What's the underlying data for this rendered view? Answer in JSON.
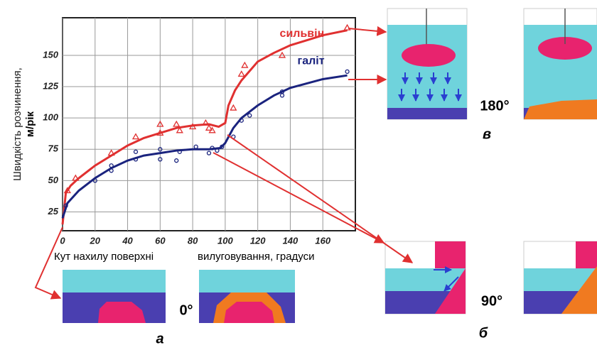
{
  "chart_data": {
    "type": "line",
    "ylabel": [
      "Швидкість розчинення,",
      "м/рік"
    ],
    "xlabel": [
      "Кут нахилу поверхні",
      "вилуговування, градуси"
    ],
    "xlim": [
      0,
      180
    ],
    "ylim": [
      10,
      180
    ],
    "xticks": [
      0,
      20,
      40,
      60,
      80,
      100,
      120,
      140,
      160
    ],
    "yticks": [
      25,
      50,
      75,
      100,
      125,
      150
    ],
    "grid": true,
    "series": [
      {
        "name": "сильвін",
        "color": "#e03030",
        "marker": "triangle",
        "x": [
          0,
          2,
          5,
          10,
          20,
          30,
          40,
          50,
          60,
          70,
          80,
          90,
          96,
          100,
          102,
          106,
          110,
          120,
          130,
          140,
          150,
          160,
          175
        ],
        "values": [
          15,
          40,
          46,
          52,
          62,
          70,
          78,
          84,
          88,
          92,
          94,
          95,
          93,
          96,
          110,
          122,
          130,
          145,
          152,
          158,
          162,
          166,
          170
        ],
        "obs_x": [
          3,
          8,
          30,
          45,
          60,
          60,
          70,
          72,
          80,
          88,
          90,
          92,
          105,
          110,
          112,
          135,
          175
        ],
        "obs_y": [
          42,
          52,
          72,
          85,
          95,
          88,
          95,
          90,
          93,
          96,
          92,
          90,
          108,
          135,
          142,
          150,
          172
        ]
      },
      {
        "name": "галіт",
        "color": "#1a237e",
        "marker": "circle",
        "x": [
          0,
          3,
          10,
          20,
          30,
          40,
          50,
          60,
          70,
          80,
          90,
          97,
          100,
          105,
          110,
          120,
          130,
          140,
          160,
          175
        ],
        "values": [
          20,
          32,
          42,
          52,
          60,
          66,
          70,
          72,
          74,
          75,
          75,
          76,
          80,
          92,
          100,
          110,
          118,
          124,
          131,
          134
        ],
        "obs_x": [
          2,
          20,
          30,
          30,
          45,
          45,
          60,
          60,
          70,
          72,
          82,
          90,
          92,
          95,
          98,
          105,
          110,
          115,
          135,
          135,
          175
        ],
        "obs_y": [
          30,
          50,
          58,
          62,
          67,
          73,
          67,
          75,
          66,
          73,
          77,
          72,
          76,
          74,
          77,
          85,
          98,
          102,
          118,
          121,
          137
        ]
      }
    ],
    "angles": [
      "0°",
      "90°",
      "180°"
    ],
    "panels": [
      "а",
      "б",
      "в"
    ]
  }
}
